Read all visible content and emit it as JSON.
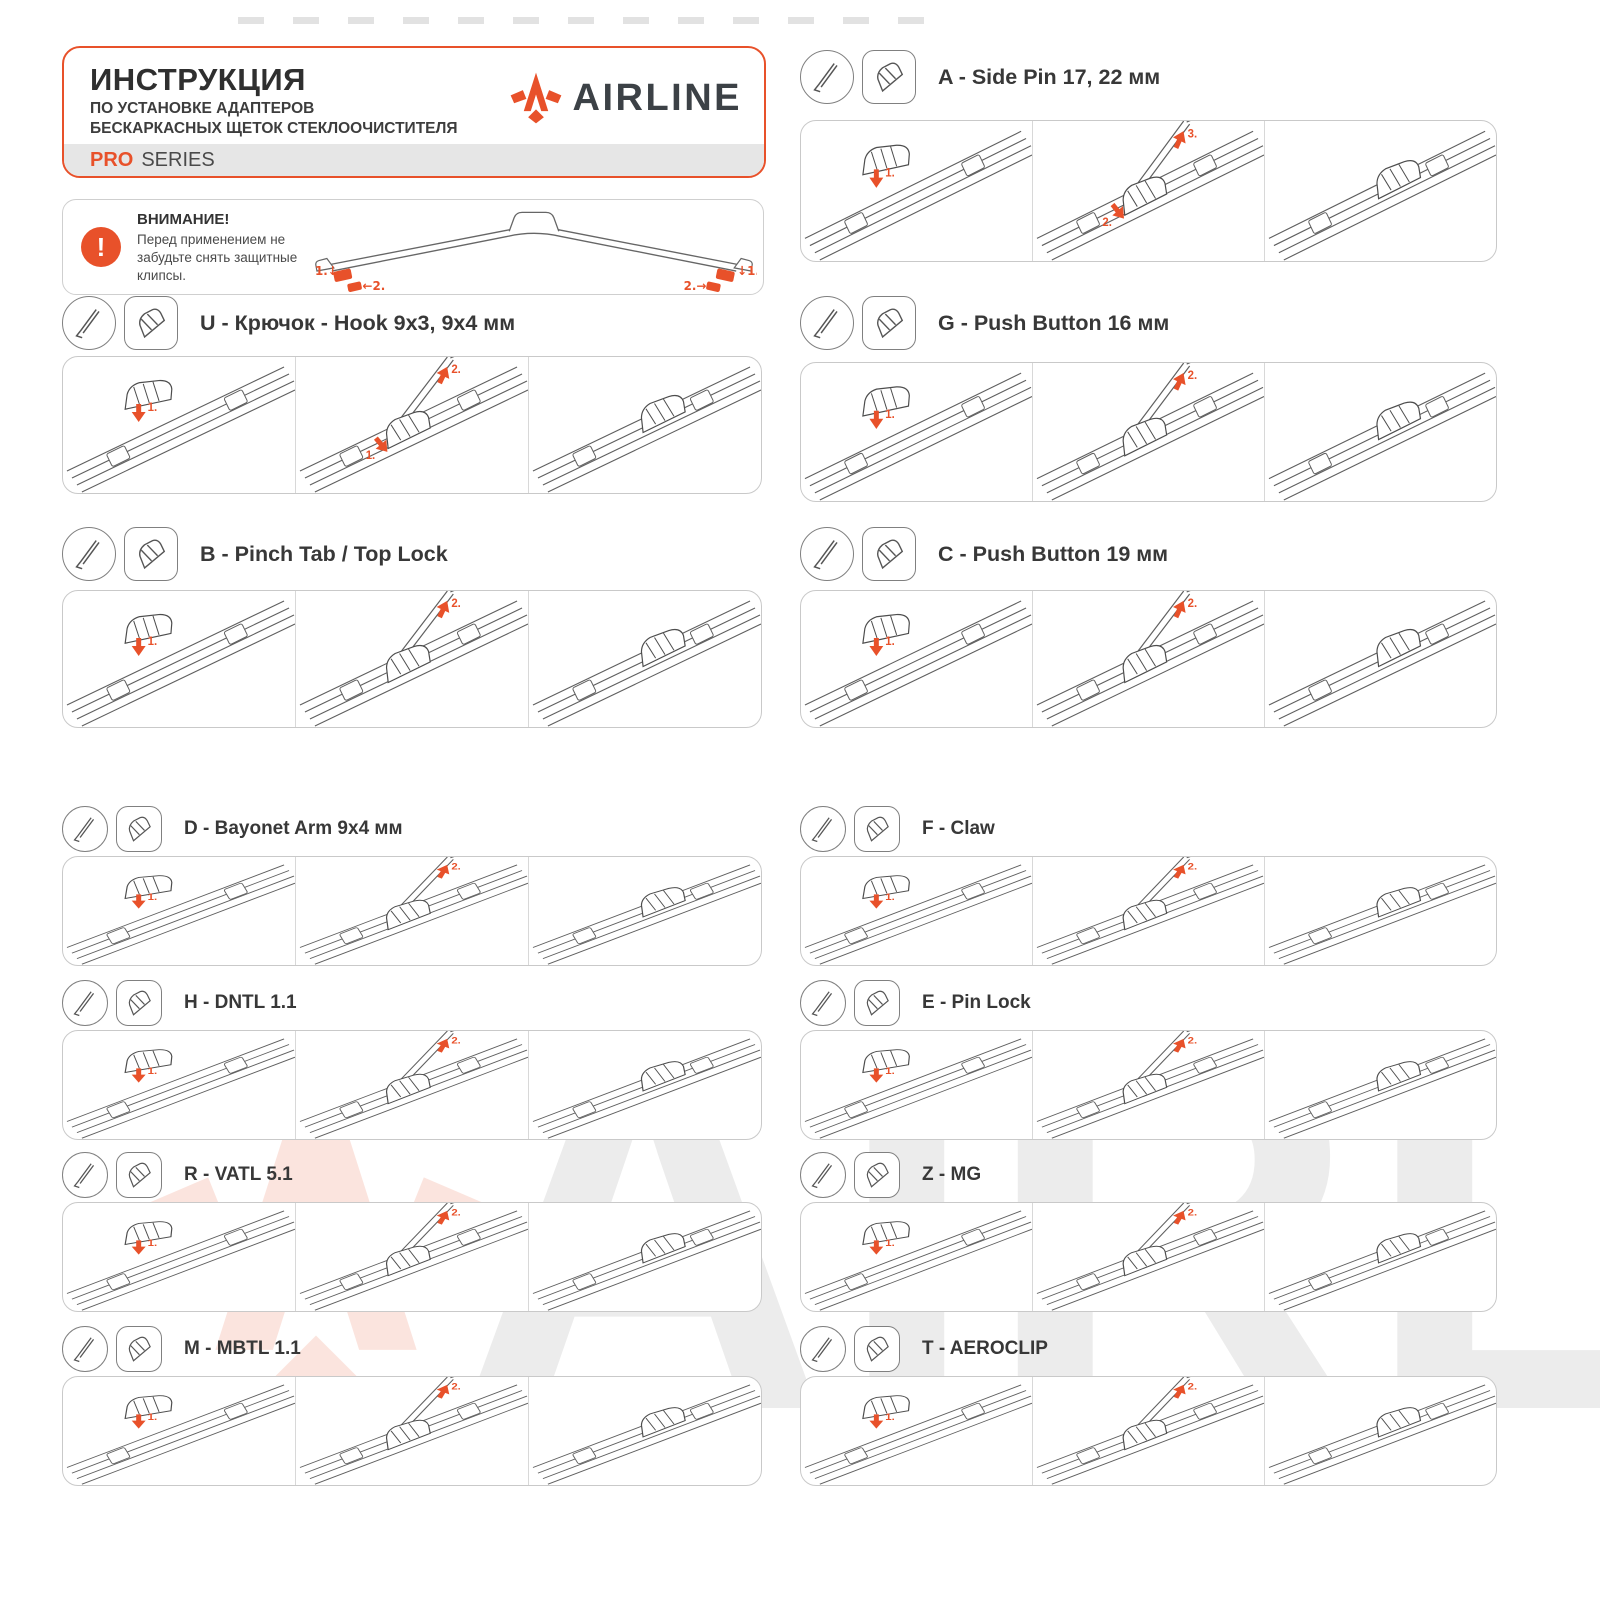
{
  "header": {
    "title": "ИНСТРУКЦИЯ",
    "subtitle_line1": "ПО УСТАНОВКЕ АДАПТЕРОВ",
    "subtitle_line2": "БЕСКАРКАСНЫХ ЩЕТОК СТЕКЛООЧИСТИТЕЛЯ",
    "series_pro": "PRO",
    "series_rest": "SERIES",
    "brand": "AIRLINE"
  },
  "warning": {
    "icon_glyph": "!",
    "title": "ВНИМАНИЕ!",
    "text": "Перед применением не забудьте снять защитные клипсы.",
    "clip_labels": {
      "left1": "1.↓",
      "left2": "←2.",
      "right1": "↓1.",
      "right2": "2.→"
    }
  },
  "watermark_text": "AIRLINE",
  "colors": {
    "accent": "#E8512A",
    "text_dark": "#333333",
    "brand_gray": "#3C4146",
    "border_gray": "#C9C9C9",
    "line_art": "#5f5f5f"
  },
  "sections": [
    {
      "id": "U",
      "title": "U - Крючок - Hook 9x3, 9x4 мм",
      "steps": [
        [
          "1."
        ],
        [
          "2.",
          "1."
        ],
        []
      ]
    },
    {
      "id": "B",
      "title": "B - Pinch Tab / Top Lock",
      "steps": [
        [
          "1."
        ],
        [
          "2."
        ],
        []
      ]
    },
    {
      "id": "D",
      "title": "D - Bayonet Arm 9x4 мм",
      "steps": [
        [
          "1."
        ],
        [
          "2."
        ],
        []
      ]
    },
    {
      "id": "H",
      "title": "H - DNTL 1.1",
      "steps": [
        [
          "1."
        ],
        [
          "2."
        ],
        []
      ]
    },
    {
      "id": "R",
      "title": "R - VATL 5.1",
      "steps": [
        [
          "1."
        ],
        [
          "2."
        ],
        []
      ]
    },
    {
      "id": "M",
      "title": "M - MBTL 1.1",
      "steps": [
        [
          "1."
        ],
        [
          "2."
        ],
        []
      ]
    },
    {
      "id": "A",
      "title": "A - Side Pin 17, 22 мм",
      "steps": [
        [
          "1."
        ],
        [
          "3.",
          "2."
        ],
        []
      ]
    },
    {
      "id": "G",
      "title": "G - Push Button 16 мм",
      "steps": [
        [
          "1."
        ],
        [
          "2."
        ],
        []
      ]
    },
    {
      "id": "C",
      "title": "C - Push Button 19 мм",
      "steps": [
        [
          "1."
        ],
        [
          "2."
        ],
        []
      ]
    },
    {
      "id": "F",
      "title": "F - Claw",
      "steps": [
        [
          "1."
        ],
        [
          "2."
        ],
        []
      ]
    },
    {
      "id": "E",
      "title": "E - Pin Lock",
      "steps": [
        [
          "1."
        ],
        [
          "2."
        ],
        []
      ]
    },
    {
      "id": "Z",
      "title": "Z - MG",
      "steps": [
        [
          "1."
        ],
        [
          "2."
        ],
        []
      ]
    },
    {
      "id": "T",
      "title": "T - AEROCLIP",
      "steps": [
        [
          "1."
        ],
        [
          "2."
        ],
        []
      ]
    }
  ]
}
